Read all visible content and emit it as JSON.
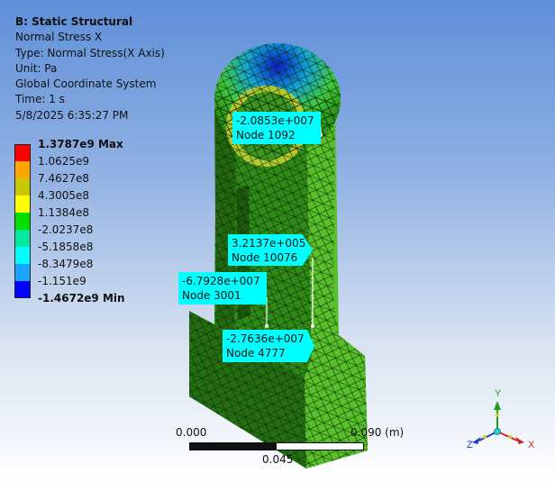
{
  "info": {
    "title": "B: Static Structural",
    "line1": "Normal Stress X",
    "line2": "Type: Normal Stress(X Axis)",
    "line3": "Unit: Pa",
    "line4": "Global Coordinate System",
    "line5": "Time: 1 s",
    "line6": "5/8/2025 6:35:27 PM"
  },
  "legend": {
    "colors": [
      "#ff0000",
      "#ffa500",
      "#c8c800",
      "#ffff00",
      "#00dd00",
      "#00e8a0",
      "#00ffff",
      "#18a4ff",
      "#0000ff"
    ],
    "labels": [
      "1.3787e9 Max",
      "1.0625e9",
      "7.4627e8",
      "4.3005e8",
      "1.1384e8",
      "-2.0237e8",
      "-5.1858e8",
      "-8.3479e8",
      "-1.151e9",
      "-1.4672e9 Min"
    ]
  },
  "probes": [
    {
      "value": "-2.0853e+007",
      "node": "Node 1092"
    },
    {
      "value": "3.2137e+005",
      "node": "Node 10076"
    },
    {
      "value": "-6.7928e+007",
      "node": "Node 3001"
    },
    {
      "value": "-2.7636e+007",
      "node": "Node 4777"
    }
  ],
  "scale_bar": {
    "left_label": "0.000",
    "right_label": "0.090 (m)",
    "mid_label": "0.045"
  },
  "triad": {
    "x_label": "X",
    "y_label": "Y",
    "z_label": "Z",
    "x_color": "#d42020",
    "y_color": "#20a020",
    "z_color": "#2040c0"
  }
}
